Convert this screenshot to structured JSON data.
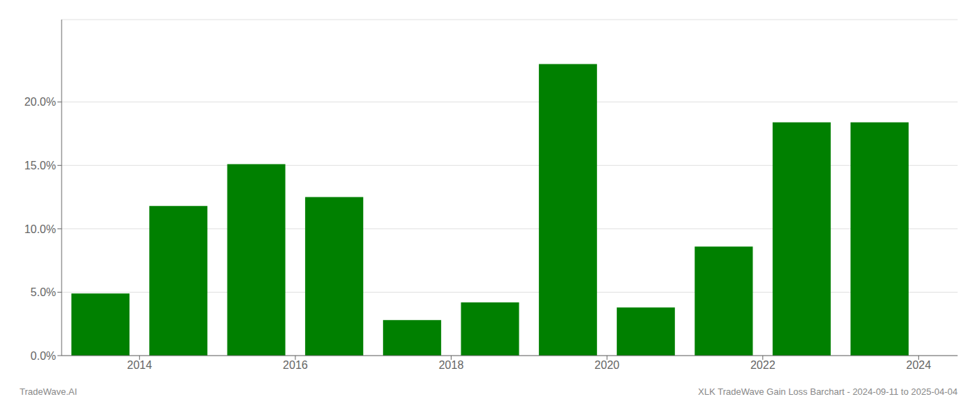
{
  "chart_data": {
    "type": "bar",
    "x": [
      2013.5,
      2014.5,
      2015.5,
      2016.5,
      2017.5,
      2018.5,
      2019.5,
      2020.5,
      2021.5,
      2022.5,
      2023.5
    ],
    "values": [
      0.049,
      0.118,
      0.151,
      0.125,
      0.028,
      0.042,
      0.23,
      0.038,
      0.086,
      0.184,
      0.184
    ],
    "color": "#008000",
    "xlim": [
      2013.0,
      2024.5
    ],
    "xticks": [
      2014,
      2016,
      2018,
      2020,
      2022,
      2024
    ],
    "ylim": [
      0,
      0.265
    ],
    "yticks": [
      {
        "value": 0.0,
        "label": "0.0%"
      },
      {
        "value": 0.05,
        "label": "5.0%"
      },
      {
        "value": 0.1,
        "label": "10.0%"
      },
      {
        "value": 0.15,
        "label": "15.0%"
      },
      {
        "value": 0.2,
        "label": "20.0%"
      }
    ],
    "grid": true,
    "annotations": [
      "TradeWave.AI",
      "XLK TradeWave Gain Loss Barchart - 2024-09-11 to 2025-04-04"
    ]
  }
}
